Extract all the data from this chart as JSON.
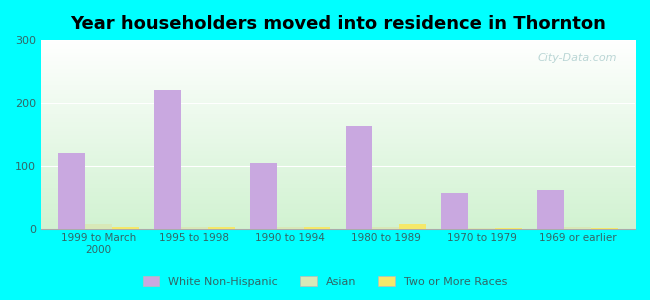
{
  "title": "Year householders moved into residence in Thornton",
  "categories": [
    "1999 to March\n2000",
    "1995 to 1998",
    "1990 to 1994",
    "1980 to 1989",
    "1970 to 1979",
    "1969 or earlier"
  ],
  "series": {
    "White Non-Hispanic": [
      120,
      220,
      105,
      163,
      57,
      62
    ],
    "Asian": [
      8,
      2,
      2,
      2,
      1,
      2
    ],
    "Two or More Races": [
      2,
      2,
      2,
      8,
      1,
      1
    ]
  },
  "colors": {
    "White Non-Hispanic": "#c9a8e0",
    "Asian": "#d8e8b8",
    "Two or More Races": "#f5e86a"
  },
  "bar_width": 0.28,
  "ylim": [
    0,
    300
  ],
  "yticks": [
    0,
    100,
    200,
    300
  ],
  "background_color": "#00FFFF",
  "watermark": "City-Data.com",
  "legend_labels": [
    "White Non-Hispanic",
    "Asian",
    "Two or More Races"
  ]
}
